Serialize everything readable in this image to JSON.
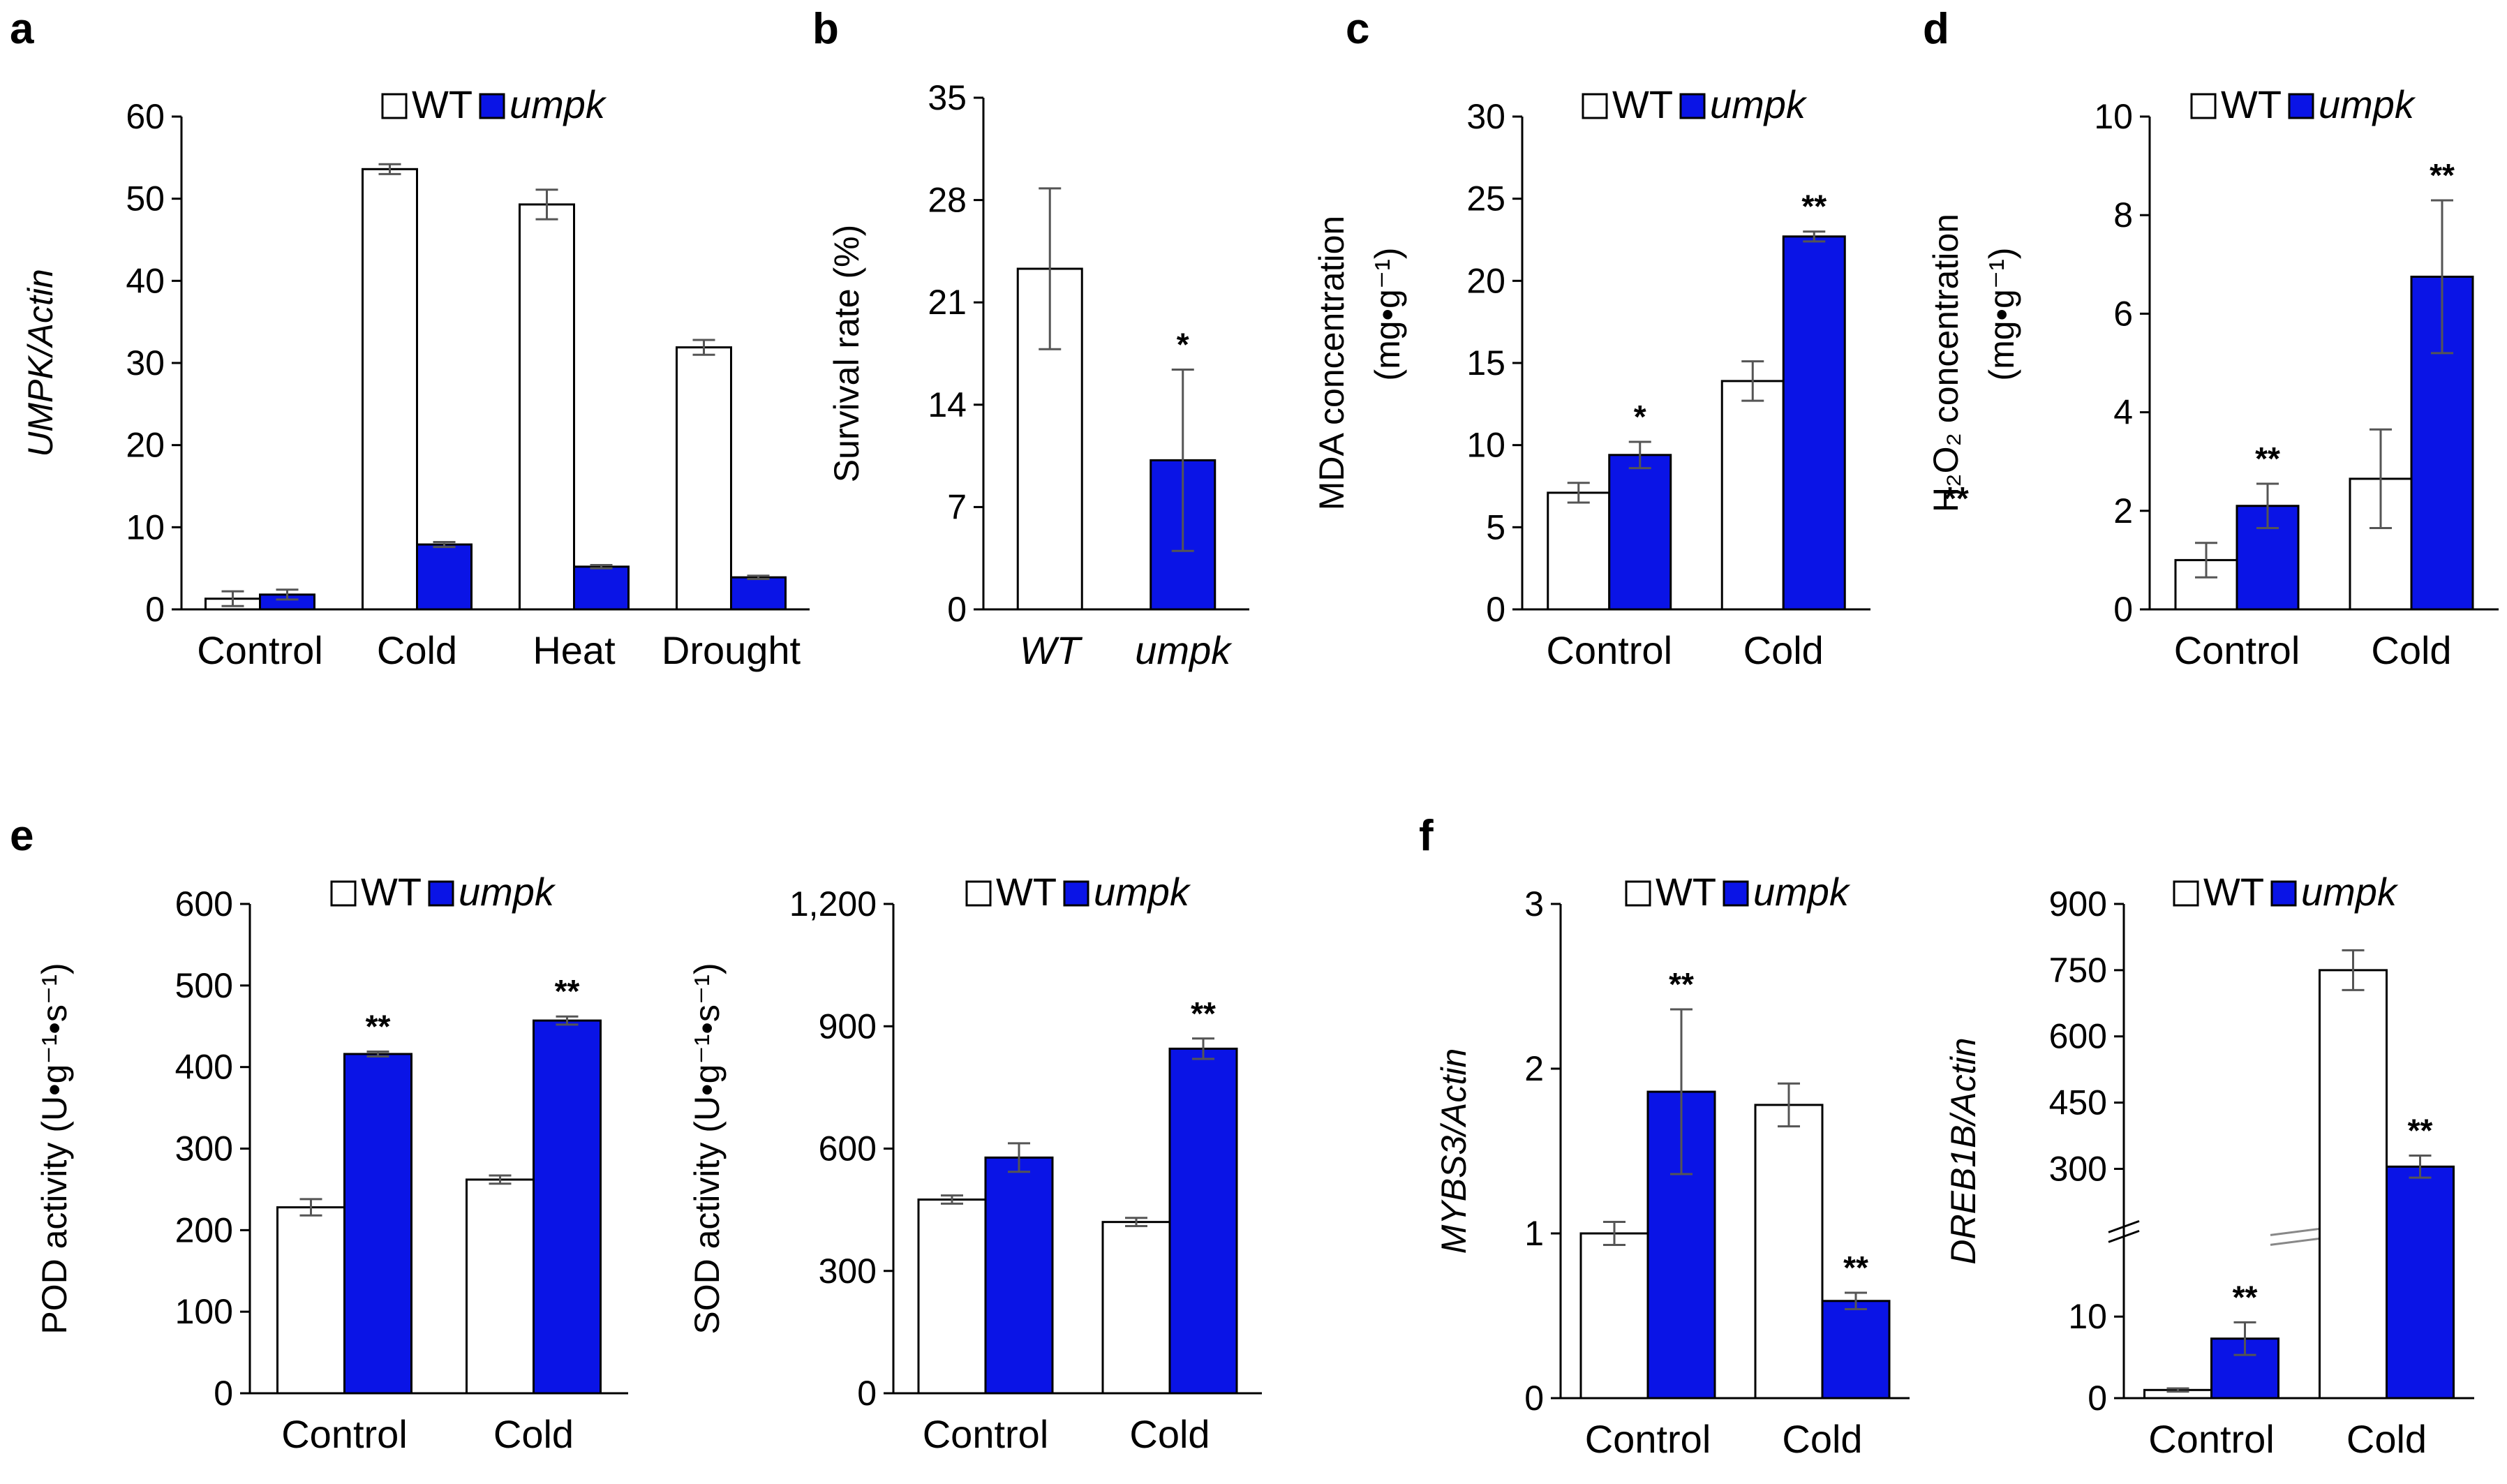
{
  "figure": {
    "colors": {
      "wt_fill": "#ffffff",
      "mutant_fill": "#0a14e6",
      "axis": "#000000",
      "error": "#555555"
    }
  },
  "chart_data": [
    {
      "id": "a",
      "panel_label": "a",
      "type": "bar",
      "title": "",
      "ylabel": "UMPK/Actin",
      "ylabel_italic": true,
      "ylim": [
        0,
        60
      ],
      "yticks": [
        0,
        10,
        20,
        30,
        40,
        50,
        60
      ],
      "categories": [
        "Control",
        "Cold",
        "Heat",
        "Drought"
      ],
      "legend": {
        "position": "top-right"
      },
      "series": [
        {
          "name": "WT",
          "values": [
            1.3,
            53.6,
            49.3,
            31.9
          ],
          "errors": [
            0.9,
            0.6,
            1.8,
            0.9
          ],
          "sig": [
            "",
            "",
            "",
            ""
          ]
        },
        {
          "name": "umpk",
          "name_italic": true,
          "values": [
            1.8,
            7.9,
            5.2,
            3.9
          ],
          "errors": [
            0.6,
            0.3,
            0.2,
            0.2
          ],
          "sig": [
            "",
            "",
            "",
            ""
          ]
        }
      ]
    },
    {
      "id": "b",
      "panel_label": "b",
      "type": "bar",
      "title": "",
      "ylabel": "Survival rate (%)",
      "ylim": [
        0,
        35
      ],
      "yticks": [
        0,
        7,
        14,
        21,
        28,
        35
      ],
      "categories": [
        "WT",
        "umpk"
      ],
      "categories_italic": true,
      "single_series": true,
      "series": [
        {
          "name": "Survival",
          "values": [
            23.3,
            10.2
          ],
          "errors": [
            5.5,
            6.2
          ],
          "sig": [
            "",
            "*"
          ],
          "bar_fills": [
            "wt",
            "mutant"
          ]
        }
      ]
    },
    {
      "id": "c",
      "panel_label": "c",
      "type": "bar",
      "title": "",
      "ylabel": "MDA concentration",
      "ylabel2": "(mg•g⁻¹)",
      "ylim": [
        0,
        30
      ],
      "yticks": [
        0,
        5,
        10,
        15,
        20,
        25,
        30
      ],
      "categories": [
        "Control",
        "Cold"
      ],
      "legend": {
        "position": "top"
      },
      "series": [
        {
          "name": "WT",
          "values": [
            7.1,
            13.9
          ],
          "errors": [
            0.6,
            1.2
          ],
          "sig": [
            "",
            ""
          ]
        },
        {
          "name": "umpk",
          "name_italic": true,
          "values": [
            9.4,
            22.7
          ],
          "errors": [
            0.8,
            0.3
          ],
          "sig": [
            "*",
            "**"
          ]
        }
      ]
    },
    {
      "id": "d",
      "panel_label": "d",
      "type": "bar",
      "title": "",
      "ylabel": "H₂O₂ concentration",
      "ylabel2": "(mg•g⁻¹)",
      "ylabel_mark": "**",
      "ylim": [
        0,
        10
      ],
      "yticks": [
        0,
        2,
        4,
        6,
        8,
        10
      ],
      "categories": [
        "Control",
        "Cold"
      ],
      "legend": {
        "position": "top"
      },
      "series": [
        {
          "name": "WT",
          "values": [
            1.0,
            2.65
          ],
          "errors": [
            0.35,
            1.0
          ],
          "sig": [
            "",
            ""
          ]
        },
        {
          "name": "umpk",
          "name_italic": true,
          "values": [
            2.1,
            6.75
          ],
          "errors": [
            0.45,
            1.55
          ],
          "sig": [
            "**",
            "**"
          ]
        }
      ]
    },
    {
      "id": "e1",
      "panel_label": "e",
      "type": "bar",
      "title": "",
      "ylabel": "POD activity (U•g⁻¹•s⁻¹)",
      "ylim": [
        0,
        600
      ],
      "yticks": [
        0,
        100,
        200,
        300,
        400,
        500,
        600
      ],
      "categories": [
        "Control",
        "Cold"
      ],
      "legend": {
        "position": "top"
      },
      "series": [
        {
          "name": "WT",
          "values": [
            228,
            262
          ],
          "errors": [
            10,
            5
          ],
          "sig": [
            "",
            ""
          ]
        },
        {
          "name": "umpk",
          "name_italic": true,
          "values": [
            416,
            457
          ],
          "errors": [
            3,
            5
          ],
          "sig": [
            "**",
            "**"
          ]
        }
      ]
    },
    {
      "id": "e2",
      "panel_label": "",
      "type": "bar",
      "title": "",
      "ylabel": "SOD activity (U•g⁻¹•s⁻¹)",
      "ylim": [
        0,
        1200
      ],
      "yticks": [
        0,
        300,
        600,
        900,
        1200
      ],
      "ytick_labels": [
        "0",
        "300",
        "600",
        "900",
        "1,200"
      ],
      "categories": [
        "Control",
        "Cold"
      ],
      "legend": {
        "position": "top"
      },
      "series": [
        {
          "name": "WT",
          "values": [
            475,
            420
          ],
          "errors": [
            10,
            10
          ],
          "sig": [
            "",
            ""
          ]
        },
        {
          "name": "umpk",
          "name_italic": true,
          "values": [
            578,
            845
          ],
          "errors": [
            35,
            25
          ],
          "sig": [
            "",
            "**"
          ]
        }
      ]
    },
    {
      "id": "f1",
      "panel_label": "f",
      "type": "bar",
      "title": "",
      "ylabel": "MYBS3/Actin",
      "ylabel_italic": true,
      "ylim": [
        0,
        3
      ],
      "yticks": [
        0,
        1,
        2,
        3
      ],
      "categories": [
        "Control",
        "Cold"
      ],
      "legend": {
        "position": "top"
      },
      "series": [
        {
          "name": "WT",
          "values": [
            1.0,
            1.78
          ],
          "errors": [
            0.07,
            0.13
          ],
          "sig": [
            "",
            ""
          ]
        },
        {
          "name": "umpk",
          "name_italic": true,
          "values": [
            1.86,
            0.59
          ],
          "errors": [
            0.5,
            0.05
          ],
          "sig": [
            "**",
            "**"
          ]
        }
      ]
    },
    {
      "id": "f2",
      "panel_label": "",
      "type": "bar",
      "title": "",
      "ylabel": "DREB1B/Actin",
      "ylabel_italic": true,
      "axis_break": {
        "lower": [
          0,
          20
        ],
        "upper": [
          150,
          900
        ]
      },
      "yticks": [
        0,
        10,
        300,
        450,
        600,
        750,
        900
      ],
      "categories": [
        "Control",
        "Cold"
      ],
      "legend": {
        "position": "top"
      },
      "series": [
        {
          "name": "WT",
          "values": [
            1.0,
            750
          ],
          "errors": [
            0.2,
            45
          ],
          "sig": [
            "",
            ""
          ]
        },
        {
          "name": "umpk",
          "name_italic": true,
          "values": [
            7.3,
            305
          ],
          "errors": [
            2.0,
            25
          ],
          "sig": [
            "**",
            "**"
          ]
        }
      ]
    }
  ]
}
